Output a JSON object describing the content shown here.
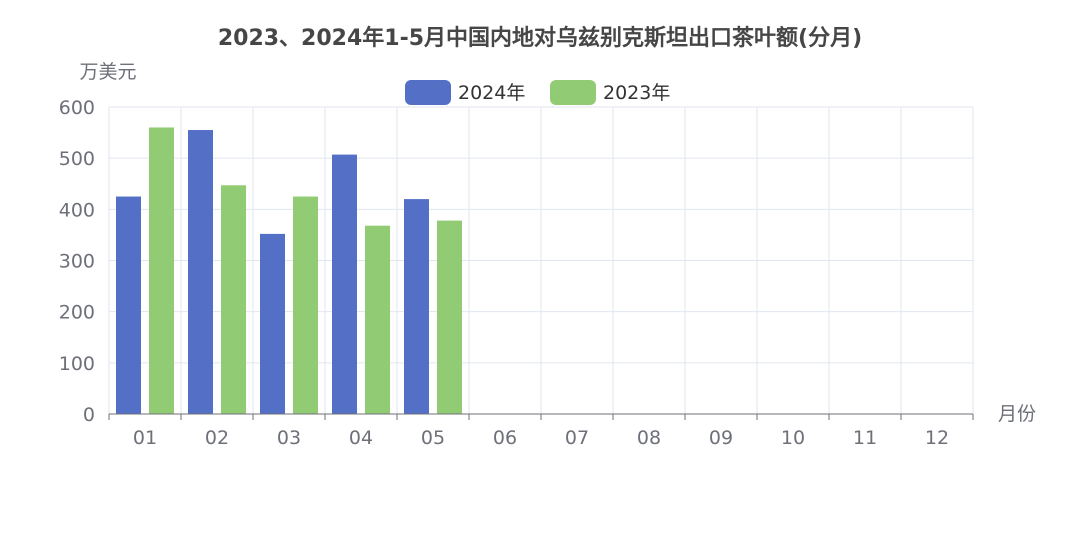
{
  "chart_data": {
    "type": "bar",
    "title": "2023、2024年1-5月中国内地对乌兹别克斯坦出口茶叶额(分月)",
    "ylabel": "万美元",
    "xlabel": "月份",
    "categories": [
      "01",
      "02",
      "03",
      "04",
      "05",
      "06",
      "07",
      "08",
      "09",
      "10",
      "11",
      "12"
    ],
    "ylim": [
      0,
      600
    ],
    "yticks": [
      0,
      100,
      200,
      300,
      400,
      500,
      600
    ],
    "grid": true,
    "legend_position": "top-center",
    "series": [
      {
        "name": "2024年",
        "color": "#5470c6",
        "values": [
          425,
          555,
          352,
          507,
          420,
          null,
          null,
          null,
          null,
          null,
          null,
          null
        ]
      },
      {
        "name": "2023年",
        "color": "#91cc75",
        "values": [
          560,
          447,
          425,
          368,
          378,
          null,
          null,
          null,
          null,
          null,
          null,
          null
        ]
      }
    ]
  }
}
